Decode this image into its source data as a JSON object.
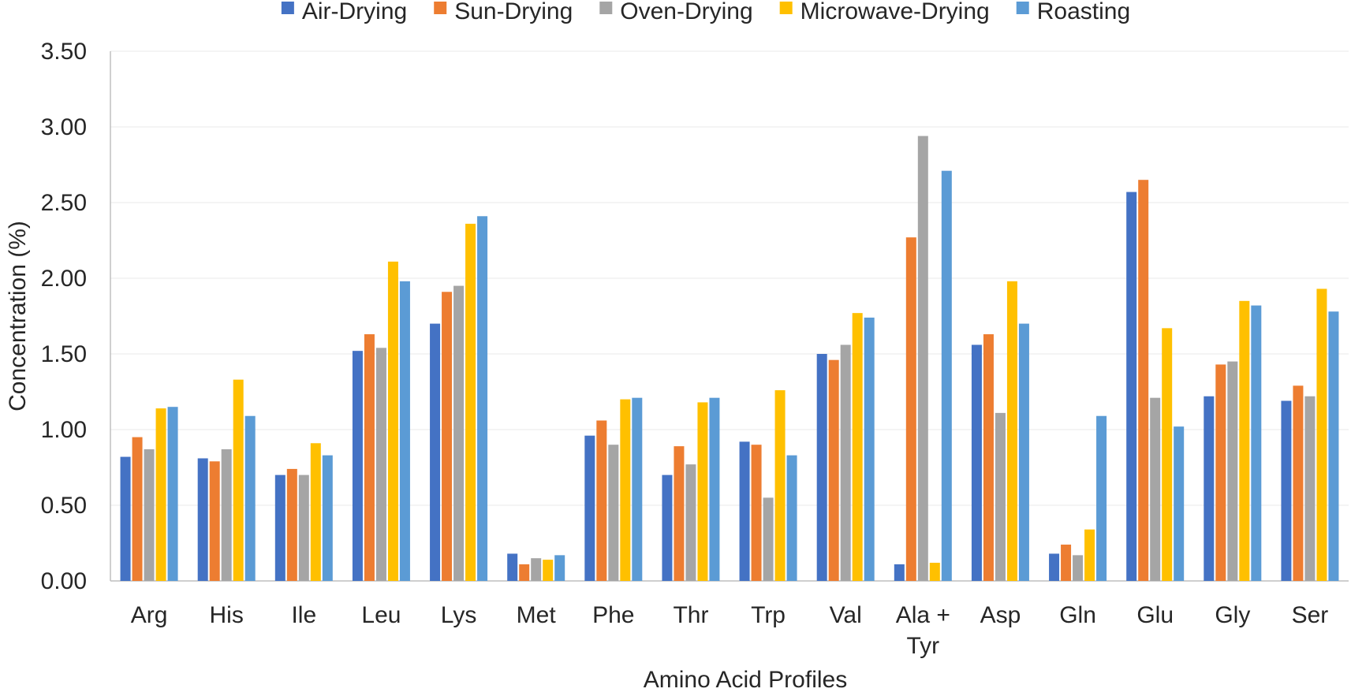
{
  "chart_data": {
    "type": "bar",
    "title": "",
    "xlabel": "Amino Acid Profiles",
    "ylabel": "Concentration (%)",
    "ylim": [
      0,
      3.5
    ],
    "yticks": [
      "0.00",
      "0.50",
      "1.00",
      "1.50",
      "2.00",
      "2.50",
      "3.00",
      "3.50"
    ],
    "grid": "horizontal",
    "legend_position": "top",
    "categories": [
      [
        "Arg"
      ],
      [
        "His"
      ],
      [
        "Ile"
      ],
      [
        "Leu"
      ],
      [
        "Lys"
      ],
      [
        "Met"
      ],
      [
        "Phe"
      ],
      [
        "Thr"
      ],
      [
        "Trp"
      ],
      [
        "Val"
      ],
      [
        "Ala +",
        "Tyr"
      ],
      [
        "Asp"
      ],
      [
        "Gln"
      ],
      [
        "Glu"
      ],
      [
        "Gly"
      ],
      [
        "Ser"
      ]
    ],
    "series": [
      {
        "name": "Air-Drying",
        "color": "#4472C4",
        "values": [
          0.82,
          0.81,
          0.7,
          1.52,
          1.7,
          0.18,
          0.96,
          0.7,
          0.92,
          1.5,
          0.11,
          1.56,
          0.18,
          2.57,
          1.22,
          1.19
        ]
      },
      {
        "name": "Sun-Drying",
        "color": "#ED7D31",
        "values": [
          0.95,
          0.79,
          0.74,
          1.63,
          1.91,
          0.11,
          1.06,
          0.89,
          0.9,
          1.46,
          2.27,
          1.63,
          0.24,
          2.65,
          1.43,
          1.29
        ]
      },
      {
        "name": "Oven-Drying",
        "color": "#A5A5A5",
        "values": [
          0.87,
          0.87,
          0.7,
          1.54,
          1.95,
          0.15,
          0.9,
          0.77,
          0.55,
          1.56,
          2.94,
          1.11,
          0.17,
          1.21,
          1.45,
          1.22
        ]
      },
      {
        "name": "Microwave-Drying",
        "color": "#FFC000",
        "values": [
          1.14,
          1.33,
          0.91,
          2.11,
          2.36,
          0.14,
          1.2,
          1.18,
          1.26,
          1.77,
          0.12,
          1.98,
          0.34,
          1.67,
          1.85,
          1.93
        ]
      },
      {
        "name": "Roasting",
        "color": "#5B9BD5",
        "values": [
          1.15,
          1.09,
          0.83,
          1.98,
          2.41,
          0.17,
          1.21,
          1.21,
          0.83,
          1.74,
          2.71,
          1.7,
          1.09,
          1.02,
          1.82,
          1.78
        ]
      }
    ]
  }
}
